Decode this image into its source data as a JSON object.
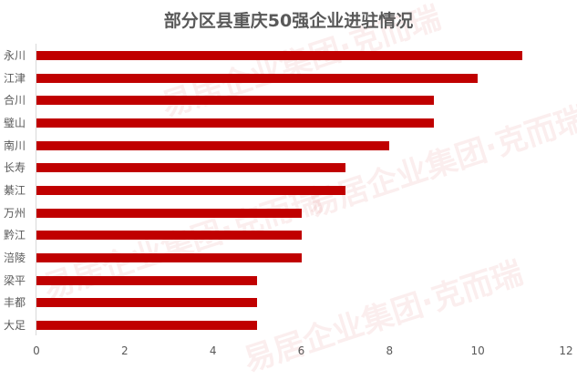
{
  "chart_data": {
    "type": "bar",
    "orientation": "horizontal",
    "title": "部分区县重庆50强企业进驻情况",
    "xlabel": "",
    "ylabel": "",
    "categories": [
      "永川",
      "江津",
      "合川",
      "璧山",
      "南川",
      "长寿",
      "綦江",
      "万州",
      "黔江",
      "涪陵",
      "梁平",
      "丰都",
      "大足"
    ],
    "values": [
      11,
      10,
      9,
      9,
      8,
      7,
      7,
      6,
      6,
      6,
      5,
      5,
      5
    ],
    "xlim": [
      0,
      12
    ],
    "xticks": [
      "0",
      "2",
      "4",
      "6",
      "8",
      "10",
      "12"
    ],
    "grid": false,
    "legend": null,
    "bar_color": "#C00000"
  },
  "watermark": {
    "brand": "易居企业集团·克而瑞"
  }
}
